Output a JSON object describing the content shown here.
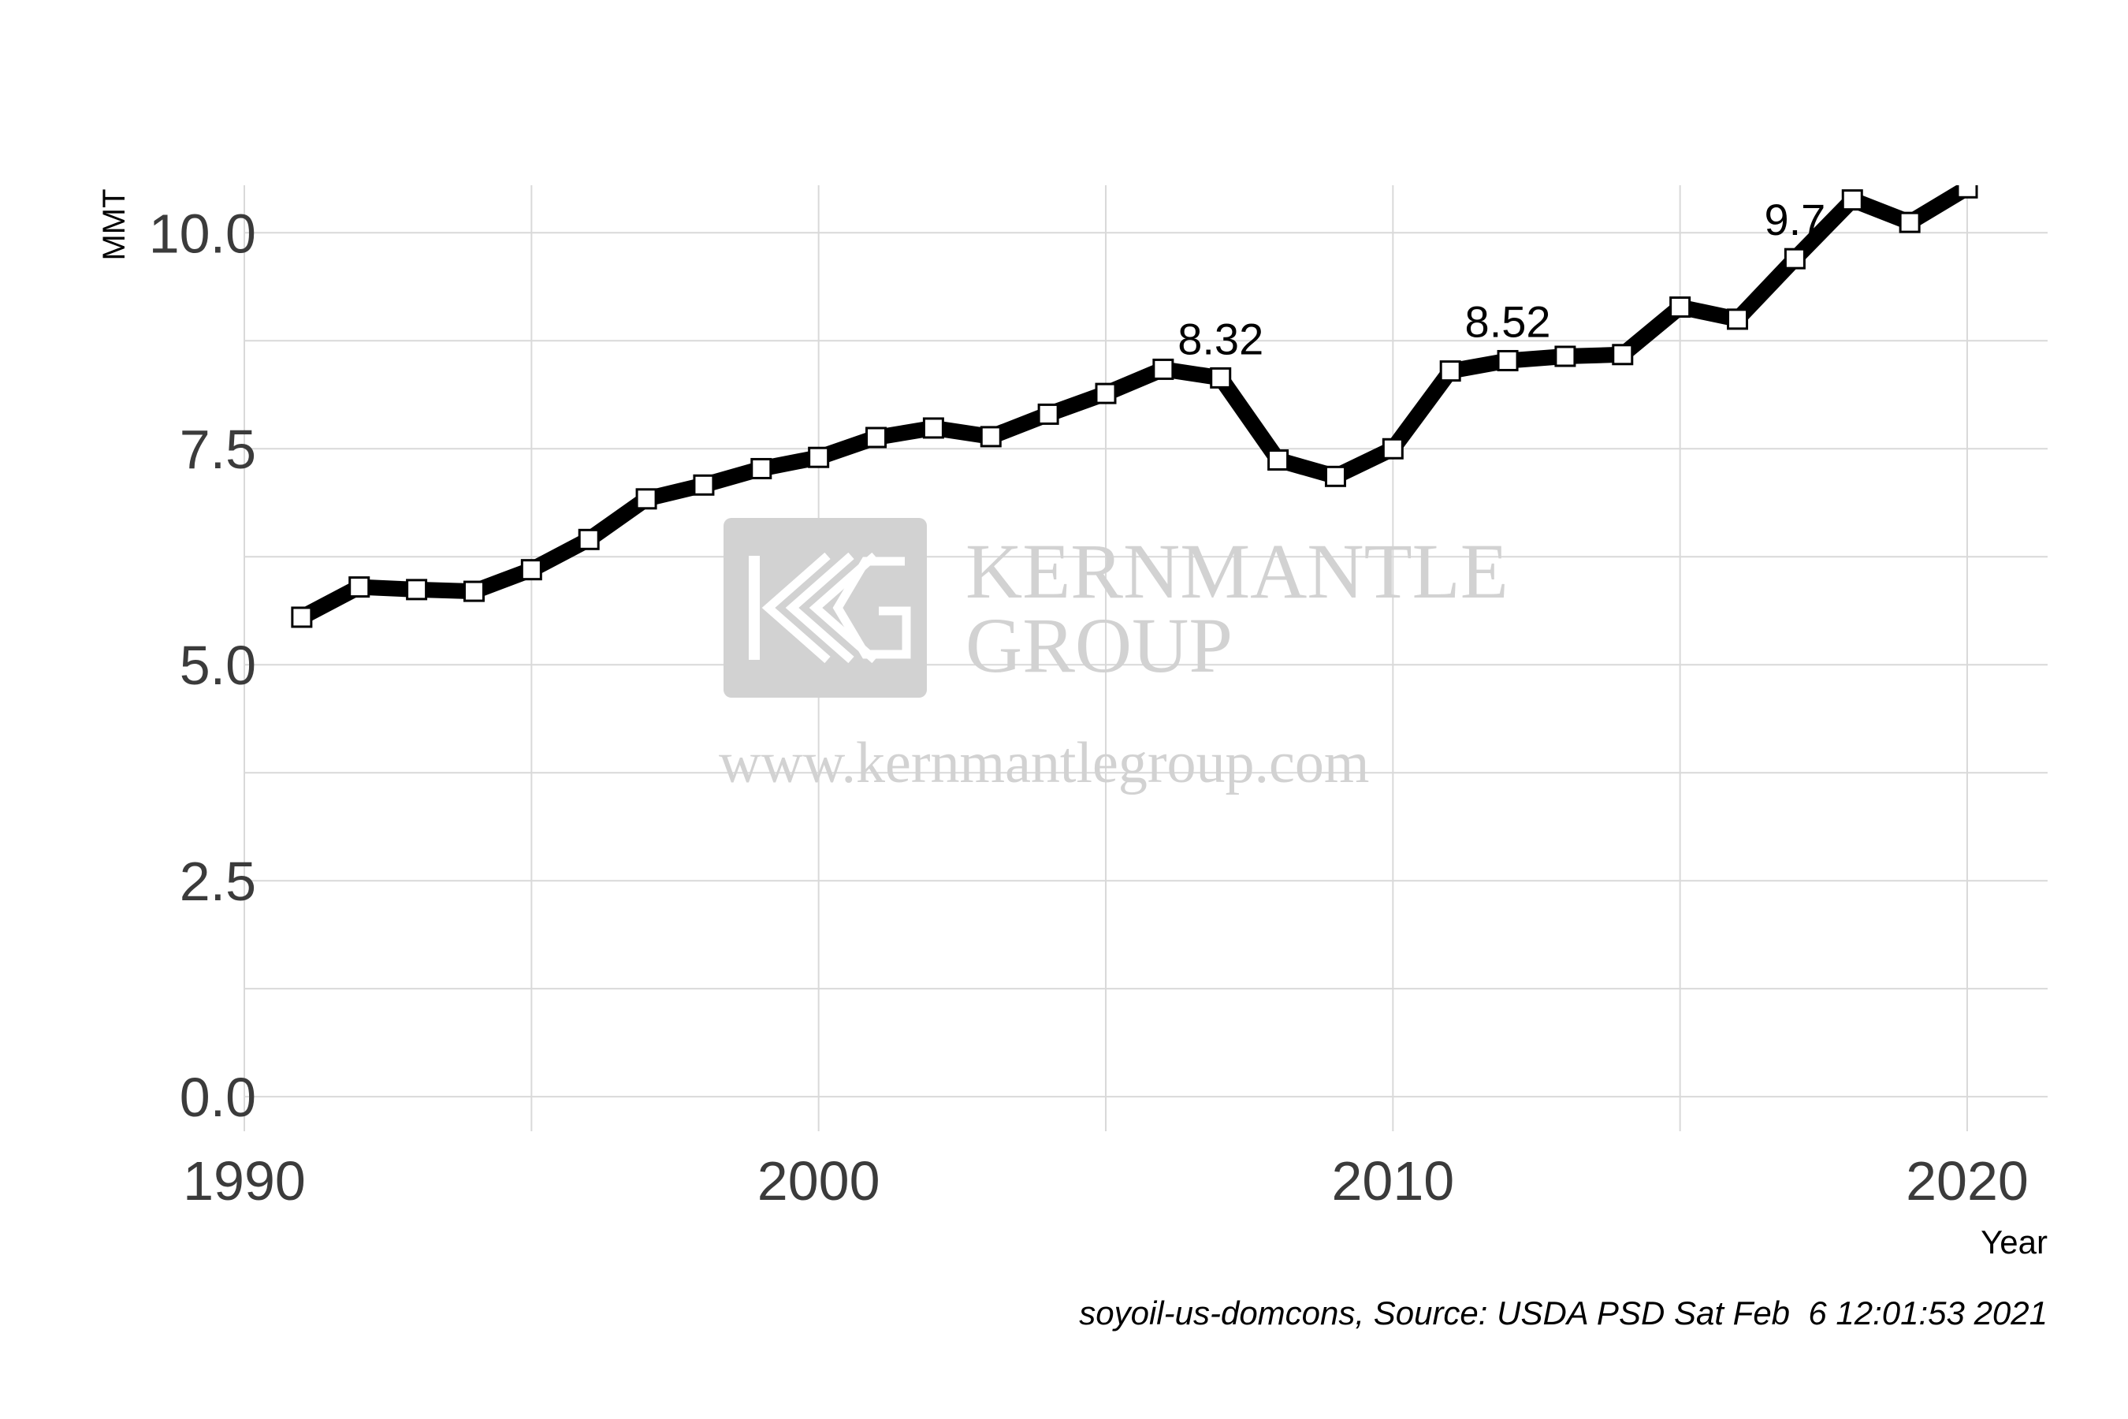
{
  "chart_data": {
    "type": "line",
    "title": "",
    "xlabel": "Year",
    "ylabel": "MMT",
    "xlim": [
      1990,
      2021.4
    ],
    "ylim": [
      -0.4,
      10.55
    ],
    "x_ticks": [
      1990,
      2000,
      2010,
      2020
    ],
    "x_tick_labels": [
      "1990",
      "2000",
      "2010",
      "2020"
    ],
    "y_ticks": [
      0,
      2.5,
      5,
      7.5,
      10
    ],
    "y_tick_labels": [
      "0.0",
      "2.5",
      "5.0",
      "7.5",
      "10.0"
    ],
    "grid": true,
    "series": [
      {
        "x": [
          1991,
          1992,
          1993,
          1994,
          1995,
          1996,
          1997,
          1998,
          1999,
          2000,
          2001,
          2002,
          2003,
          2004,
          2005,
          2006,
          2007,
          2008,
          2009,
          2010,
          2011,
          2012,
          2013,
          2014,
          2015,
          2016,
          2017,
          2018,
          2019,
          2020
        ],
        "values": [
          5.55,
          5.9,
          5.87,
          5.85,
          6.1,
          6.45,
          6.92,
          7.08,
          7.27,
          7.4,
          7.63,
          7.74,
          7.64,
          7.9,
          8.14,
          8.42,
          8.32,
          7.37,
          7.18,
          7.5,
          8.4,
          8.52,
          8.57,
          8.59,
          9.14,
          9.0,
          9.7,
          10.38,
          10.12,
          10.52
        ]
      }
    ],
    "annotations": [
      {
        "x": 2007,
        "y": 8.32,
        "text": "8.32"
      },
      {
        "x": 2012,
        "y": 8.52,
        "text": "8.52"
      },
      {
        "x": 2017,
        "y": 9.7,
        "text": "9.7"
      }
    ],
    "caption": "soyoil-us-domcons, Source: USDA PSD Sat Feb  6 12:01:53 2021"
  },
  "watermark": {
    "line1": "KERNMANTLE",
    "line2": "GROUP",
    "url": "www.kernmantlegroup.com",
    "color": "#d2d2d2"
  },
  "colors": {
    "line": "#000000",
    "marker_fill": "#ffffff",
    "grid": "#d9d9d9"
  }
}
